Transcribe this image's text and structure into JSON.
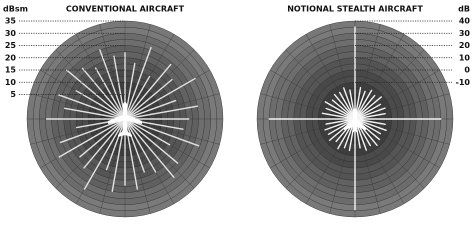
{
  "chart_data": [
    {
      "type": "polar",
      "title": "CONVENTIONAL AIRCRAFT",
      "axis_label": "dBsm",
      "theta": [
        0,
        10,
        20,
        30,
        40,
        50,
        60,
        70,
        80,
        90,
        100,
        110,
        120,
        130,
        140,
        150,
        160,
        170,
        180,
        190,
        200,
        210,
        220,
        230,
        240,
        250,
        260,
        270,
        280,
        290,
        300,
        310,
        320,
        330,
        340,
        350
      ],
      "values": [
        22,
        18,
        26,
        15,
        24,
        20,
        28,
        17,
        25,
        21,
        19,
        27,
        16,
        23,
        26,
        20,
        18,
        24,
        22,
        25,
        17,
        28,
        21,
        19,
        26,
        23,
        15,
        27,
        20,
        24,
        18,
        26,
        22,
        19,
        25,
        21
      ],
      "color": "#e2e2e2",
      "rlim": [
        -5,
        35
      ],
      "rticks": [
        5,
        10,
        15,
        20,
        25,
        30,
        35
      ]
    },
    {
      "type": "polar",
      "title": "NOTIONAL STEALTH AIRCRAFT",
      "axis_label": "dB",
      "theta": [
        0,
        10,
        20,
        30,
        40,
        50,
        60,
        70,
        80,
        90,
        100,
        110,
        120,
        130,
        140,
        150,
        160,
        170,
        180,
        190,
        200,
        210,
        220,
        230,
        240,
        250,
        260,
        270,
        280,
        290,
        300,
        310,
        320,
        330,
        340,
        350
      ],
      "values": [
        35,
        -14,
        -16,
        -13,
        -15,
        -12,
        -16,
        -14,
        -15,
        30,
        -15,
        -13,
        -16,
        -14,
        -12,
        -15,
        -13,
        -16,
        34,
        -14,
        -15,
        -12,
        -16,
        -13,
        -15,
        -14,
        -16,
        30,
        -13,
        -15,
        -12,
        -16,
        -14,
        -15,
        -13,
        -16
      ],
      "color": "#f4f4f4",
      "rlim": [
        -40,
        40
      ],
      "rticks": [
        -10,
        0,
        10,
        20,
        30,
        40
      ]
    }
  ]
}
